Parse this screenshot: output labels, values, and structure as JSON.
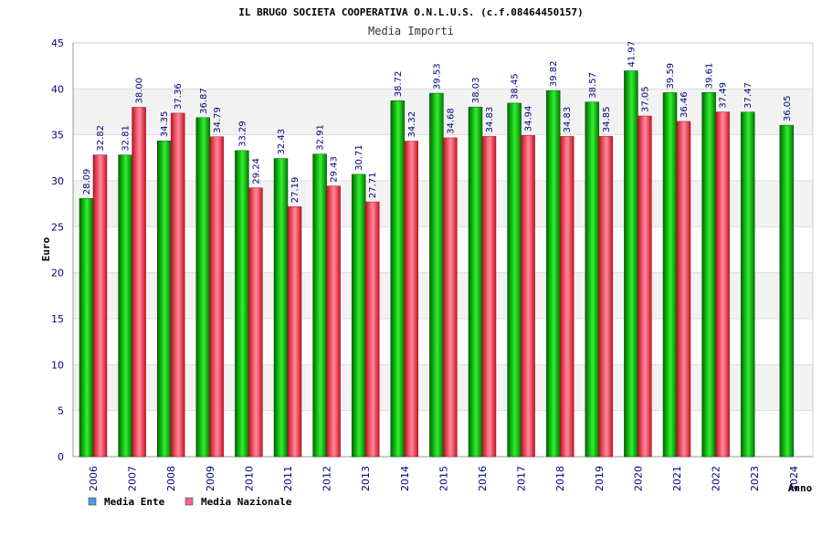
{
  "chart_data": {
    "type": "bar",
    "title": "IL BRUGO SOCIETA COOPERATIVA O.N.L.U.S. (c.f.08464450157)",
    "subtitle": "Media Importi",
    "xlabel": "Anno",
    "ylabel": "Euro",
    "ylim": [
      0,
      45
    ],
    "ytick_step": 5,
    "categories": [
      "2006",
      "2007",
      "2008",
      "2009",
      "2010",
      "2011",
      "2012",
      "2013",
      "2014",
      "2015",
      "2016",
      "2017",
      "2018",
      "2019",
      "2020",
      "2021",
      "2022",
      "2023",
      "2024"
    ],
    "series": [
      {
        "name": "Media Ente",
        "color": "#00aa00",
        "values": [
          28.09,
          32.81,
          34.35,
          36.87,
          33.29,
          32.43,
          32.91,
          30.71,
          38.72,
          39.53,
          38.03,
          38.45,
          39.82,
          38.57,
          41.97,
          39.59,
          39.61,
          37.47,
          36.05
        ],
        "labels": [
          "28.09",
          "32.81",
          "34.35",
          "36.87",
          "33.29",
          "32.43",
          "32.91",
          "30.71",
          "38.72",
          "39.53",
          "38.03",
          "38.45",
          "39.82",
          "38.57",
          "41.97",
          "39.59",
          "39.61",
          "37.47",
          "36.05"
        ]
      },
      {
        "name": "Media Nazionale",
        "color": "#dd2233",
        "values": [
          32.82,
          38.0,
          37.36,
          34.79,
          29.24,
          27.19,
          29.43,
          27.71,
          34.32,
          34.68,
          34.83,
          34.94,
          34.83,
          34.85,
          37.05,
          36.46,
          37.49,
          null,
          null
        ],
        "labels": [
          "32.82",
          "38.00",
          "37.36",
          "34.79",
          "29.24",
          "27.19",
          "29.43",
          "27.71",
          "34.32",
          "34.68",
          "34.83",
          "34.94",
          "34.83",
          "34.85",
          "37.05",
          "36.46",
          "37.49",
          null,
          null
        ]
      }
    ],
    "legend": [
      {
        "name": "Media Ente",
        "color": "#5599ee"
      },
      {
        "name": "Media Nazionale",
        "color": "#ee6699"
      }
    ],
    "legend_position": "bottom-left",
    "grid": true
  }
}
